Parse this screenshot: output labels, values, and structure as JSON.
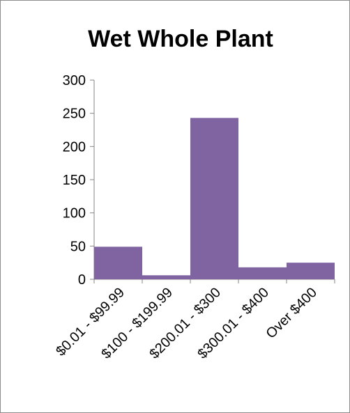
{
  "chart_data": {
    "type": "bar",
    "title": "Wet Whole Plant",
    "categories": [
      "$0.01 - $99.99",
      "$100 - $199.99",
      "$200.01 - $300",
      "$300.01 - $400",
      "Over $400"
    ],
    "values": [
      49,
      6,
      243,
      18,
      25
    ],
    "ylim": [
      0,
      300
    ],
    "yticks": [
      0,
      50,
      100,
      150,
      200,
      250,
      300
    ],
    "xlabel": "",
    "ylabel": "",
    "grid": false,
    "legend": "none",
    "bar_color": "#8064A2"
  }
}
